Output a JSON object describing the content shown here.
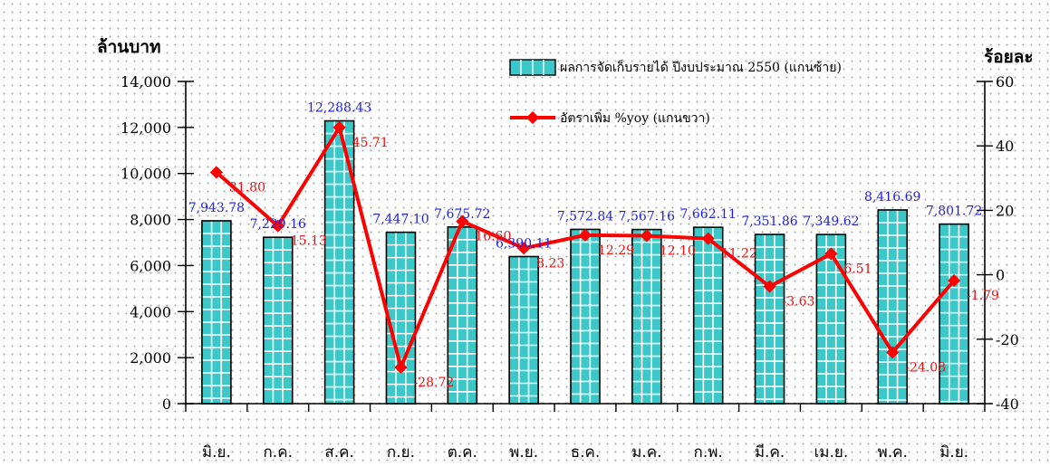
{
  "chart_data": {
    "type": "bar",
    "y_left_label": "ล้านบาท",
    "y_right_label": "ร้อยละ",
    "y_left_lim": [
      0,
      14000
    ],
    "y_left_ticks": [
      "0",
      "2,000",
      "4,000",
      "6,000",
      "8,000",
      "10,000",
      "12,000",
      "14,000"
    ],
    "y_right_lim": [
      -40,
      60
    ],
    "y_right_ticks": [
      "-40",
      "-20",
      "0",
      "20",
      "40",
      "60"
    ],
    "grid": false,
    "legend_position": "top-right",
    "categories": [
      "มิ.ย.",
      "ก.ค.",
      "ส.ค.",
      "ก.ย.",
      "ต.ค.",
      "พ.ย.",
      "ธ.ค.",
      "ม.ค.",
      "ก.พ.",
      "มี.ค.",
      "เม.ย.",
      "พ.ค.",
      "มิ.ย."
    ],
    "series": [
      {
        "name": "ผลการจัดเก็บรายได้ ปีงบประมาณ 2550 (แกนซ้าย)",
        "kind": "bar",
        "axis": "left",
        "color": "#3cc8c8",
        "values": [
          7943.78,
          7229.16,
          12288.43,
          7447.1,
          7675.72,
          6390.11,
          7572.84,
          7567.16,
          7662.11,
          7351.86,
          7349.62,
          8416.69,
          7801.72
        ],
        "labels": [
          "7,943.78",
          "7,229.16",
          "12,288.43",
          "7,447.10",
          "7,675.72",
          "6,390.11",
          "7,572.84",
          "7,567.16",
          "7,662.11",
          "7,351.86",
          "7,349.62",
          "8,416.69",
          "7,801.72"
        ]
      },
      {
        "name": "อัตราเพิ่ม %yoy (แกนขวา)",
        "kind": "line",
        "axis": "right",
        "color": "#ff0000",
        "values": [
          31.8,
          15.13,
          45.71,
          -28.72,
          16.6,
          8.23,
          12.29,
          12.1,
          11.22,
          -3.63,
          6.51,
          -24.08,
          -1.79
        ],
        "labels": [
          "31.80",
          "15.13",
          "45.71",
          "-28.72",
          "16.60",
          "8.23",
          "12.29",
          "12.10",
          "11.22",
          "-3.63",
          "6.51",
          "-24.08",
          "-1.79"
        ]
      }
    ]
  }
}
